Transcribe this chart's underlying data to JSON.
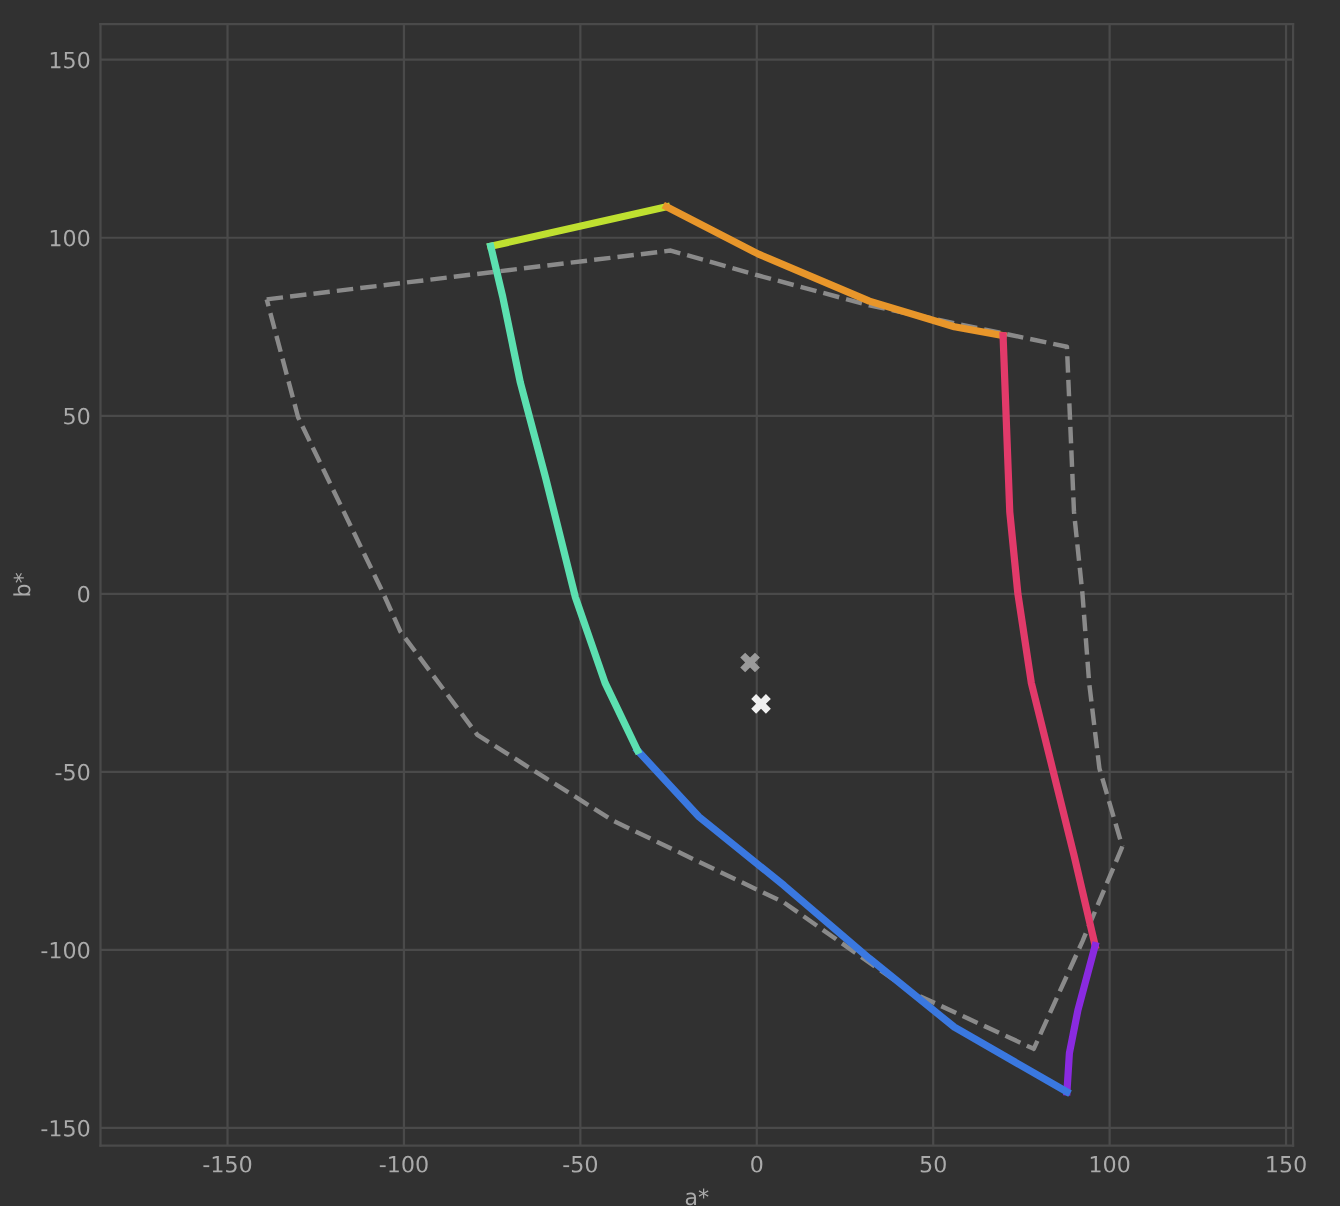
{
  "chart_data": {
    "type": "line",
    "xlabel": "a*",
    "ylabel": "b*",
    "xlim": [
      -186,
      152
    ],
    "ylim": [
      -155,
      160
    ],
    "xticks": [
      -150,
      -100,
      -50,
      0,
      50,
      100,
      150
    ],
    "yticks": [
      -150,
      -100,
      -50,
      0,
      50,
      100,
      150
    ],
    "grid": true,
    "legend": false,
    "marker": "none",
    "series": [
      {
        "color": "#bfe030",
        "x": [
          -75.4,
          -25.6
        ],
        "values": [
          97.6,
          108.7
        ]
      },
      {
        "color": "#e8962a",
        "x": [
          -25.6,
          0.5,
          31.9,
          56,
          69.8
        ],
        "values": [
          108.7,
          95.4,
          82.2,
          75,
          72.5
        ]
      },
      {
        "color": "#e23a6a",
        "x": [
          69.8,
          71.7,
          74,
          77.8,
          83.8,
          89.9,
          95.9
        ],
        "values": [
          72.5,
          23,
          0,
          -25,
          -49,
          -73.4,
          -98.8
        ]
      },
      {
        "color": "#8a2ae0",
        "x": [
          95.9,
          91,
          88.6,
          87.9
        ],
        "values": [
          -98.8,
          -117,
          -129,
          -139.9
        ]
      },
      {
        "color": "#3a78e0",
        "x": [
          87.9,
          56,
          31.9,
          7.7,
          -16.4,
          -33.8
        ],
        "values": [
          -139.9,
          -121.7,
          -102.4,
          -81.9,
          -62.6,
          -44
        ]
      },
      {
        "color": "#5ce0b0",
        "x": [
          -33.8,
          -43,
          -51.4,
          -59.9,
          -67,
          -72,
          -75.4
        ],
        "values": [
          -44,
          -25,
          -1,
          32.8,
          59.3,
          83.4,
          97.6
        ]
      },
      {
        "color": "#8a8a8a",
        "line_style": "dashed",
        "x": [
          -138.9,
          -24.4,
          0.5,
          31.9,
          87.9,
          89.9,
          92.3,
          94.2,
          97.1,
          103.6
        ],
        "values": [
          82.7,
          96.4,
          89.4,
          81,
          69.4,
          23,
          0,
          -25,
          -49,
          -71
        ]
      },
      {
        "color": "#8a8a8a",
        "line_style": "dashed",
        "x": [
          103.6,
          92.3,
          78.5,
          44,
          7.7,
          -40.6,
          -79.2,
          -101,
          -105.8,
          -130,
          -138.9
        ],
        "values": [
          -71,
          -97.6,
          -127.8,
          -112,
          -86.7,
          -63.8,
          -39.6,
          -10.6,
          0,
          49.6,
          82.7
        ]
      },
      {
        "type": "scatter",
        "marker": "cross",
        "color": "#9a9a9a",
        "x": [
          -1.9
        ],
        "values": [
          -19.3
        ]
      },
      {
        "type": "scatter",
        "marker": "cross",
        "color": "#f0f0f0",
        "x": [
          1.2
        ],
        "values": [
          -30.9
        ]
      }
    ]
  }
}
